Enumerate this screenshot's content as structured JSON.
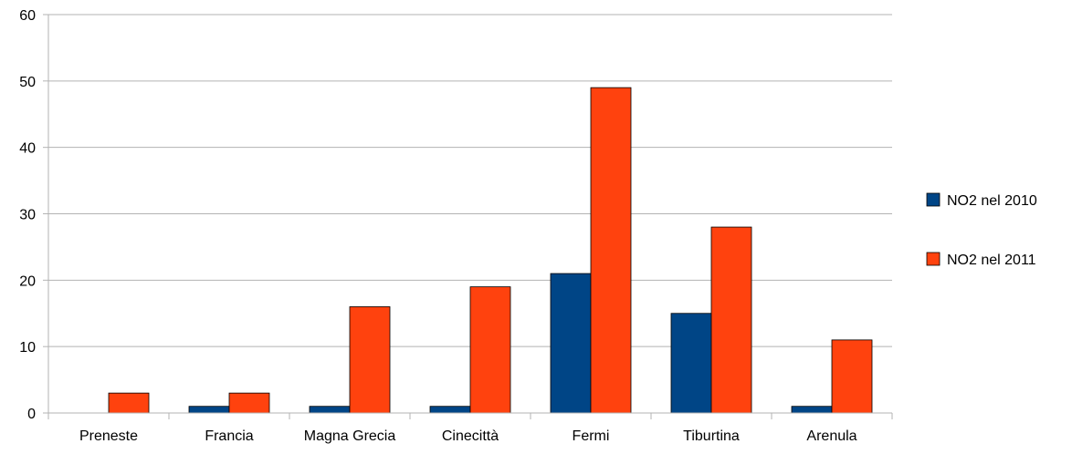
{
  "chart_data": {
    "type": "bar",
    "categories": [
      "Preneste",
      "Francia",
      "Magna Grecia",
      "Cinecittà",
      "Fermi",
      "Tiburtina",
      "Arenula"
    ],
    "series": [
      {
        "name": "NO2 nel 2010",
        "values": [
          0,
          1,
          1,
          1,
          21,
          15,
          1
        ],
        "color": "#004586"
      },
      {
        "name": "NO2 nel 2011",
        "values": [
          3,
          3,
          16,
          19,
          49,
          28,
          11
        ],
        "color": "#ff420e"
      }
    ],
    "yticks": [
      0,
      10,
      20,
      30,
      40,
      50,
      60
    ],
    "ylim": [
      0,
      60
    ],
    "grid": true,
    "legend": "right"
  }
}
